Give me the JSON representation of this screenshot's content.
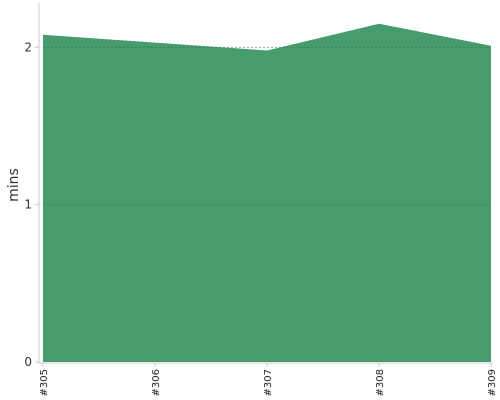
{
  "chart_data": {
    "type": "area",
    "title": "",
    "xlabel": "",
    "ylabel": "mins",
    "categories": [
      "#305",
      "#306",
      "#307",
      "#308",
      "#309"
    ],
    "series": [
      {
        "values": [
          2.08,
          2.03,
          1.98,
          2.15,
          2.01
        ],
        "color": "#479c6e"
      }
    ],
    "ylim": [
      0,
      2.25
    ],
    "yticks": [
      0,
      1,
      2
    ],
    "grid": true,
    "legend": "none"
  }
}
